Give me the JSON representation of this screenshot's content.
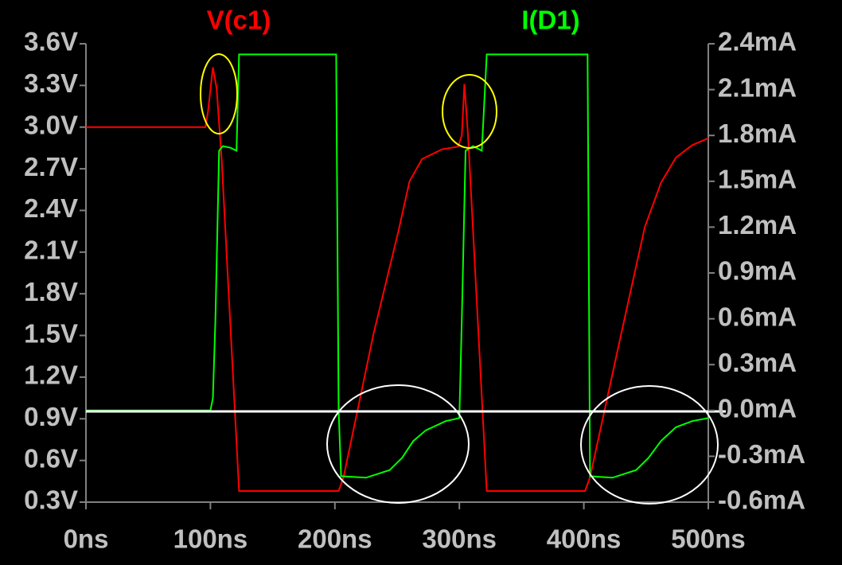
{
  "chart_data": {
    "type": "line",
    "series": [
      {
        "name": "V(c1)",
        "color": "#ff0000",
        "axis": "y",
        "x": [
          0,
          96,
          98,
          102,
          105,
          109,
          123,
          203,
          207,
          231,
          251,
          260,
          270,
          286,
          299,
          302,
          304,
          307,
          322,
          401,
          405,
          430,
          449,
          462,
          474,
          487,
          500
        ],
        "values": [
          3.0,
          3.0,
          3.11,
          3.43,
          3.28,
          2.77,
          0.38,
          0.38,
          0.48,
          1.51,
          2.25,
          2.61,
          2.77,
          2.84,
          2.86,
          2.94,
          3.31,
          2.94,
          0.38,
          0.38,
          0.48,
          1.51,
          2.28,
          2.6,
          2.78,
          2.87,
          2.92
        ]
      },
      {
        "name": "I(D1)",
        "color": "#00ff00",
        "axis": "y2",
        "x": [
          0,
          100,
          102,
          104,
          107,
          110,
          116,
          121,
          123,
          201,
          203,
          205,
          225,
          244,
          254,
          263,
          273,
          289,
          300,
          302,
          305,
          311,
          318,
          322,
          403,
          405,
          423,
          442,
          452,
          462,
          474,
          487,
          500
        ],
        "values": [
          0,
          0,
          0.08,
          0.6,
          1.7,
          1.73,
          1.72,
          1.7,
          2.33,
          2.33,
          0.0,
          -0.43,
          -0.44,
          -0.39,
          -0.31,
          -0.2,
          -0.13,
          -0.07,
          -0.05,
          0.6,
          1.7,
          1.73,
          1.7,
          2.33,
          2.33,
          -0.43,
          -0.44,
          -0.39,
          -0.31,
          -0.2,
          -0.11,
          -0.07,
          -0.05
        ]
      }
    ],
    "xlim": [
      0,
      500
    ],
    "xticks": [
      {
        "value": 0,
        "label": "0ns"
      },
      {
        "value": 100,
        "label": "100ns"
      },
      {
        "value": 200,
        "label": "200ns"
      },
      {
        "value": 300,
        "label": "300ns"
      },
      {
        "value": 400,
        "label": "400ns"
      },
      {
        "value": 500,
        "label": "500ns"
      }
    ],
    "ylim": [
      0.3,
      3.6
    ],
    "yticks": [
      {
        "value": 0.3,
        "label": "0.3V"
      },
      {
        "value": 0.6,
        "label": "0.6V"
      },
      {
        "value": 0.9,
        "label": "0.9V"
      },
      {
        "value": 1.2,
        "label": "1.2V"
      },
      {
        "value": 1.5,
        "label": "1.5V"
      },
      {
        "value": 1.8,
        "label": "1.8V"
      },
      {
        "value": 2.1,
        "label": "2.1V"
      },
      {
        "value": 2.4,
        "label": "2.4V"
      },
      {
        "value": 2.7,
        "label": "2.7V"
      },
      {
        "value": 3.0,
        "label": "3.0V"
      },
      {
        "value": 3.3,
        "label": "3.3V"
      },
      {
        "value": 3.6,
        "label": "3.6V"
      }
    ],
    "y2lim": [
      -0.6,
      2.4
    ],
    "y2ticks": [
      {
        "value": -0.6,
        "label": "-0.6mA"
      },
      {
        "value": -0.3,
        "label": "-0.3mA"
      },
      {
        "value": 0.0,
        "label": "0.0mA"
      },
      {
        "value": 0.3,
        "label": "0.3mA"
      },
      {
        "value": 0.6,
        "label": "0.6mA"
      },
      {
        "value": 0.9,
        "label": "0.9mA"
      },
      {
        "value": 1.2,
        "label": "1.2mA"
      },
      {
        "value": 1.5,
        "label": "1.5mA"
      },
      {
        "value": 1.8,
        "label": "1.8mA"
      },
      {
        "value": 2.1,
        "label": "2.1mA"
      },
      {
        "value": 2.4,
        "label": "2.4mA"
      }
    ]
  }
}
